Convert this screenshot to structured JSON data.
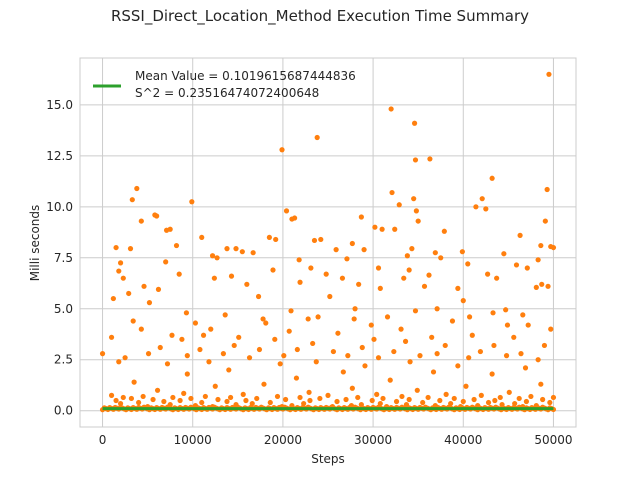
{
  "chart_data": {
    "type": "scatter",
    "title": "RSSI_Direct_Location_Method Execution Time Summary",
    "xlabel": "Steps",
    "ylabel": "Milli seconds",
    "xlim": [
      -2500,
      52500
    ],
    "ylim": [
      -0.8,
      17.3
    ],
    "xticks": [
      0,
      10000,
      20000,
      30000,
      40000,
      50000
    ],
    "xtick_labels": [
      "0",
      "10000",
      "20000",
      "30000",
      "40000",
      "50000"
    ],
    "yticks": [
      0.0,
      2.5,
      5.0,
      7.5,
      10.0,
      12.5,
      15.0
    ],
    "ytick_labels": [
      "0.0",
      "2.5",
      "5.0",
      "7.5",
      "10.0",
      "12.5",
      "15.0"
    ],
    "grid": true,
    "legend_position": "top-left",
    "legend_label": "Mean Value = 0.1019615687444836\nS^2 = 0.23516474072400648",
    "legend_lines": [
      "Mean Value = 0.1019615687444836",
      "S^2 = 0.23516474072400648"
    ],
    "scatter_color": "#ff7f0e",
    "mean_line_color": "#2ca02c",
    "mean_value": 0.1019615687444836,
    "x_range": [
      0,
      50000
    ],
    "points": [
      [
        49500,
        16.5
      ],
      [
        32000,
        14.8
      ],
      [
        34600,
        14.1
      ],
      [
        23800,
        13.4
      ],
      [
        19900,
        12.8
      ],
      [
        34700,
        12.3
      ],
      [
        36300,
        12.35
      ],
      [
        43200,
        11.4
      ],
      [
        3800,
        10.9
      ],
      [
        42100,
        10.4
      ],
      [
        32100,
        10.7
      ],
      [
        49300,
        10.85
      ],
      [
        3300,
        10.35
      ],
      [
        9900,
        10.25
      ],
      [
        34500,
        10.4
      ],
      [
        41400,
        10.0
      ],
      [
        42500,
        9.9
      ],
      [
        20400,
        9.8
      ],
      [
        34800,
        9.8
      ],
      [
        32900,
        10.1
      ],
      [
        5800,
        9.6
      ],
      [
        6000,
        9.55
      ],
      [
        28700,
        9.5
      ],
      [
        21000,
        9.4
      ],
      [
        4300,
        9.3
      ],
      [
        21300,
        9.45
      ],
      [
        49100,
        9.3
      ],
      [
        35000,
        9.3
      ],
      [
        30200,
        9.0
      ],
      [
        31000,
        8.9
      ],
      [
        32400,
        8.9
      ],
      [
        37900,
        8.8
      ],
      [
        7100,
        8.85
      ],
      [
        46300,
        8.6
      ],
      [
        7500,
        8.9
      ],
      [
        23500,
        8.35
      ],
      [
        11000,
        8.5
      ],
      [
        24200,
        8.4
      ],
      [
        19200,
        8.4
      ],
      [
        27700,
        8.2
      ],
      [
        18500,
        8.5
      ],
      [
        48600,
        8.1
      ],
      [
        50000,
        8.0
      ],
      [
        49700,
        8.05
      ],
      [
        13800,
        7.95
      ],
      [
        14800,
        7.95
      ],
      [
        8200,
        8.1
      ],
      [
        1500,
        8.0
      ],
      [
        3100,
        7.95
      ],
      [
        15500,
        7.8
      ],
      [
        36900,
        7.75
      ],
      [
        16700,
        7.75
      ],
      [
        29000,
        7.9
      ],
      [
        39900,
        7.8
      ],
      [
        34300,
        7.95
      ],
      [
        25900,
        7.9
      ],
      [
        12200,
        7.6
      ],
      [
        44500,
        7.7
      ],
      [
        37500,
        7.5
      ],
      [
        33800,
        7.6
      ],
      [
        21800,
        7.4
      ],
      [
        12700,
        7.5
      ],
      [
        27100,
        7.45
      ],
      [
        7000,
        7.3
      ],
      [
        48300,
        7.4
      ],
      [
        45900,
        7.15
      ],
      [
        2000,
        7.25
      ],
      [
        40500,
        7.2
      ],
      [
        30600,
        7.0
      ],
      [
        23100,
        7.0
      ],
      [
        47100,
        7.0
      ],
      [
        1800,
        6.85
      ],
      [
        18900,
        6.9
      ],
      [
        34000,
        6.9
      ],
      [
        24800,
        6.7
      ],
      [
        8500,
        6.7
      ],
      [
        42700,
        6.7
      ],
      [
        36200,
        6.65
      ],
      [
        14300,
        6.6
      ],
      [
        43700,
        6.5
      ],
      [
        12400,
        6.5
      ],
      [
        33400,
        6.5
      ],
      [
        2300,
        6.5
      ],
      [
        26600,
        6.5
      ],
      [
        21900,
        6.3
      ],
      [
        28400,
        6.2
      ],
      [
        4600,
        6.1
      ],
      [
        16000,
        6.2
      ],
      [
        48700,
        6.2
      ],
      [
        35700,
        6.1
      ],
      [
        30800,
        6.0
      ],
      [
        49400,
        6.1
      ],
      [
        6200,
        5.95
      ],
      [
        48100,
        6.05
      ],
      [
        39400,
        6.0
      ],
      [
        1200,
        5.5
      ],
      [
        17300,
        5.6
      ],
      [
        2900,
        5.75
      ],
      [
        25200,
        5.6
      ],
      [
        40000,
        5.4
      ],
      [
        20900,
        4.9
      ],
      [
        44700,
        4.95
      ],
      [
        5200,
        5.3
      ],
      [
        28000,
        5.0
      ],
      [
        37100,
        5.0
      ],
      [
        9300,
        4.8
      ],
      [
        34700,
        4.9
      ],
      [
        13600,
        4.7
      ],
      [
        43300,
        4.8
      ],
      [
        46600,
        4.7
      ],
      [
        31600,
        4.6
      ],
      [
        40700,
        4.6
      ],
      [
        23900,
        4.6
      ],
      [
        17800,
        4.5
      ],
      [
        22800,
        4.5
      ],
      [
        27900,
        4.5
      ],
      [
        18100,
        4.3
      ],
      [
        3400,
        4.4
      ],
      [
        38800,
        4.4
      ],
      [
        10300,
        4.3
      ],
      [
        47200,
        4.2
      ],
      [
        29800,
        4.2
      ],
      [
        44900,
        4.2
      ],
      [
        33100,
        4.0
      ],
      [
        12000,
        4.0
      ],
      [
        4300,
        4.0
      ],
      [
        49700,
        4.0
      ],
      [
        20700,
        3.9
      ],
      [
        26100,
        3.8
      ],
      [
        11200,
        3.7
      ],
      [
        41000,
        3.7
      ],
      [
        36500,
        3.6
      ],
      [
        7700,
        3.7
      ],
      [
        15100,
        3.6
      ],
      [
        45600,
        3.6
      ],
      [
        1000,
        3.6
      ],
      [
        19100,
        3.5
      ],
      [
        30100,
        3.5
      ],
      [
        33600,
        3.4
      ],
      [
        8800,
        3.5
      ],
      [
        23300,
        3.3
      ],
      [
        14600,
        3.2
      ],
      [
        38000,
        3.2
      ],
      [
        43400,
        3.2
      ],
      [
        6400,
        3.1
      ],
      [
        28800,
        3.1
      ],
      [
        49000,
        3.2
      ],
      [
        10800,
        3.0
      ],
      [
        17400,
        3.0
      ],
      [
        21600,
        3.0
      ],
      [
        25600,
        2.9
      ],
      [
        32300,
        2.9
      ],
      [
        41900,
        2.9
      ],
      [
        5100,
        2.8
      ],
      [
        13400,
        2.8
      ],
      [
        37100,
        2.8
      ],
      [
        46400,
        2.8
      ],
      [
        0,
        2.8
      ],
      [
        9400,
        2.7
      ],
      [
        20100,
        2.7
      ],
      [
        27200,
        2.7
      ],
      [
        35200,
        2.7
      ],
      [
        44800,
        2.7
      ],
      [
        2500,
        2.6
      ],
      [
        16300,
        2.6
      ],
      [
        30600,
        2.6
      ],
      [
        40600,
        2.6
      ],
      [
        48300,
        2.5
      ],
      [
        11800,
        2.4
      ],
      [
        23700,
        2.4
      ],
      [
        34100,
        2.4
      ],
      [
        1800,
        2.4
      ],
      [
        7200,
        2.3
      ],
      [
        19700,
        2.3
      ],
      [
        29100,
        2.2
      ],
      [
        39400,
        2.2
      ],
      [
        46900,
        2.1
      ],
      [
        14000,
        2.0
      ],
      [
        26700,
        1.9
      ],
      [
        36700,
        1.9
      ],
      [
        9400,
        1.8
      ],
      [
        43200,
        1.8
      ],
      [
        21500,
        1.6
      ],
      [
        31900,
        1.5
      ],
      [
        3500,
        1.4
      ],
      [
        17900,
        1.3
      ],
      [
        48600,
        1.3
      ],
      [
        12500,
        1.2
      ],
      [
        40300,
        1.2
      ],
      [
        27700,
        1.1
      ],
      [
        6100,
        1.0
      ],
      [
        34900,
        1.0
      ],
      [
        45100,
        0.9
      ],
      [
        22900,
        0.9
      ],
      [
        9000,
        0.85
      ],
      [
        15600,
        0.8
      ],
      [
        30400,
        0.8
      ],
      [
        38100,
        0.8
      ],
      [
        1000,
        0.75
      ],
      [
        25000,
        0.75
      ],
      [
        42000,
        0.75
      ],
      [
        4500,
        0.7
      ],
      [
        11400,
        0.7
      ],
      [
        19400,
        0.7
      ],
      [
        33200,
        0.7
      ],
      [
        47500,
        0.7
      ],
      [
        2300,
        0.65
      ],
      [
        7800,
        0.65
      ],
      [
        14200,
        0.65
      ],
      [
        21900,
        0.65
      ],
      [
        28300,
        0.65
      ],
      [
        36100,
        0.65
      ],
      [
        44100,
        0.65
      ],
      [
        50000,
        0.65
      ],
      [
        3200,
        0.6
      ],
      [
        9800,
        0.6
      ],
      [
        17100,
        0.6
      ],
      [
        24100,
        0.6
      ],
      [
        31100,
        0.6
      ],
      [
        39000,
        0.6
      ],
      [
        46200,
        0.6
      ],
      [
        5600,
        0.55
      ],
      [
        12800,
        0.55
      ],
      [
        20300,
        0.55
      ],
      [
        27000,
        0.55
      ],
      [
        34000,
        0.55
      ],
      [
        41200,
        0.55
      ],
      [
        48800,
        0.55
      ],
      [
        1500,
        0.5
      ],
      [
        8600,
        0.5
      ],
      [
        15900,
        0.5
      ],
      [
        23000,
        0.5
      ],
      [
        29900,
        0.5
      ],
      [
        37400,
        0.5
      ],
      [
        43500,
        0.5
      ],
      [
        6800,
        0.45
      ],
      [
        13800,
        0.45
      ],
      [
        26000,
        0.45
      ],
      [
        32600,
        0.45
      ],
      [
        40000,
        0.45
      ],
      [
        47000,
        0.45
      ],
      [
        4000,
        0.4
      ],
      [
        11000,
        0.4
      ],
      [
        18600,
        0.4
      ],
      [
        35500,
        0.4
      ],
      [
        42800,
        0.4
      ],
      [
        49600,
        0.4
      ],
      [
        2000,
        0.35
      ],
      [
        16600,
        0.35
      ],
      [
        22300,
        0.35
      ],
      [
        30800,
        0.35
      ],
      [
        38600,
        0.35
      ],
      [
        45700,
        0.35
      ],
      [
        7500,
        0.3
      ],
      [
        14800,
        0.3
      ],
      [
        28700,
        0.3
      ],
      [
        33700,
        0.3
      ],
      [
        44300,
        0.3
      ],
      [
        10300,
        0.25
      ],
      [
        21000,
        0.25
      ],
      [
        27600,
        0.25
      ],
      [
        36900,
        0.25
      ],
      [
        41600,
        0.25
      ],
      [
        48100,
        0.25
      ],
      [
        5000,
        0.2
      ],
      [
        12200,
        0.2
      ],
      [
        19900,
        0.2
      ],
      [
        25500,
        0.2
      ],
      [
        31500,
        0.2
      ],
      [
        39700,
        0.2
      ],
      [
        46600,
        0.2
      ]
    ]
  }
}
